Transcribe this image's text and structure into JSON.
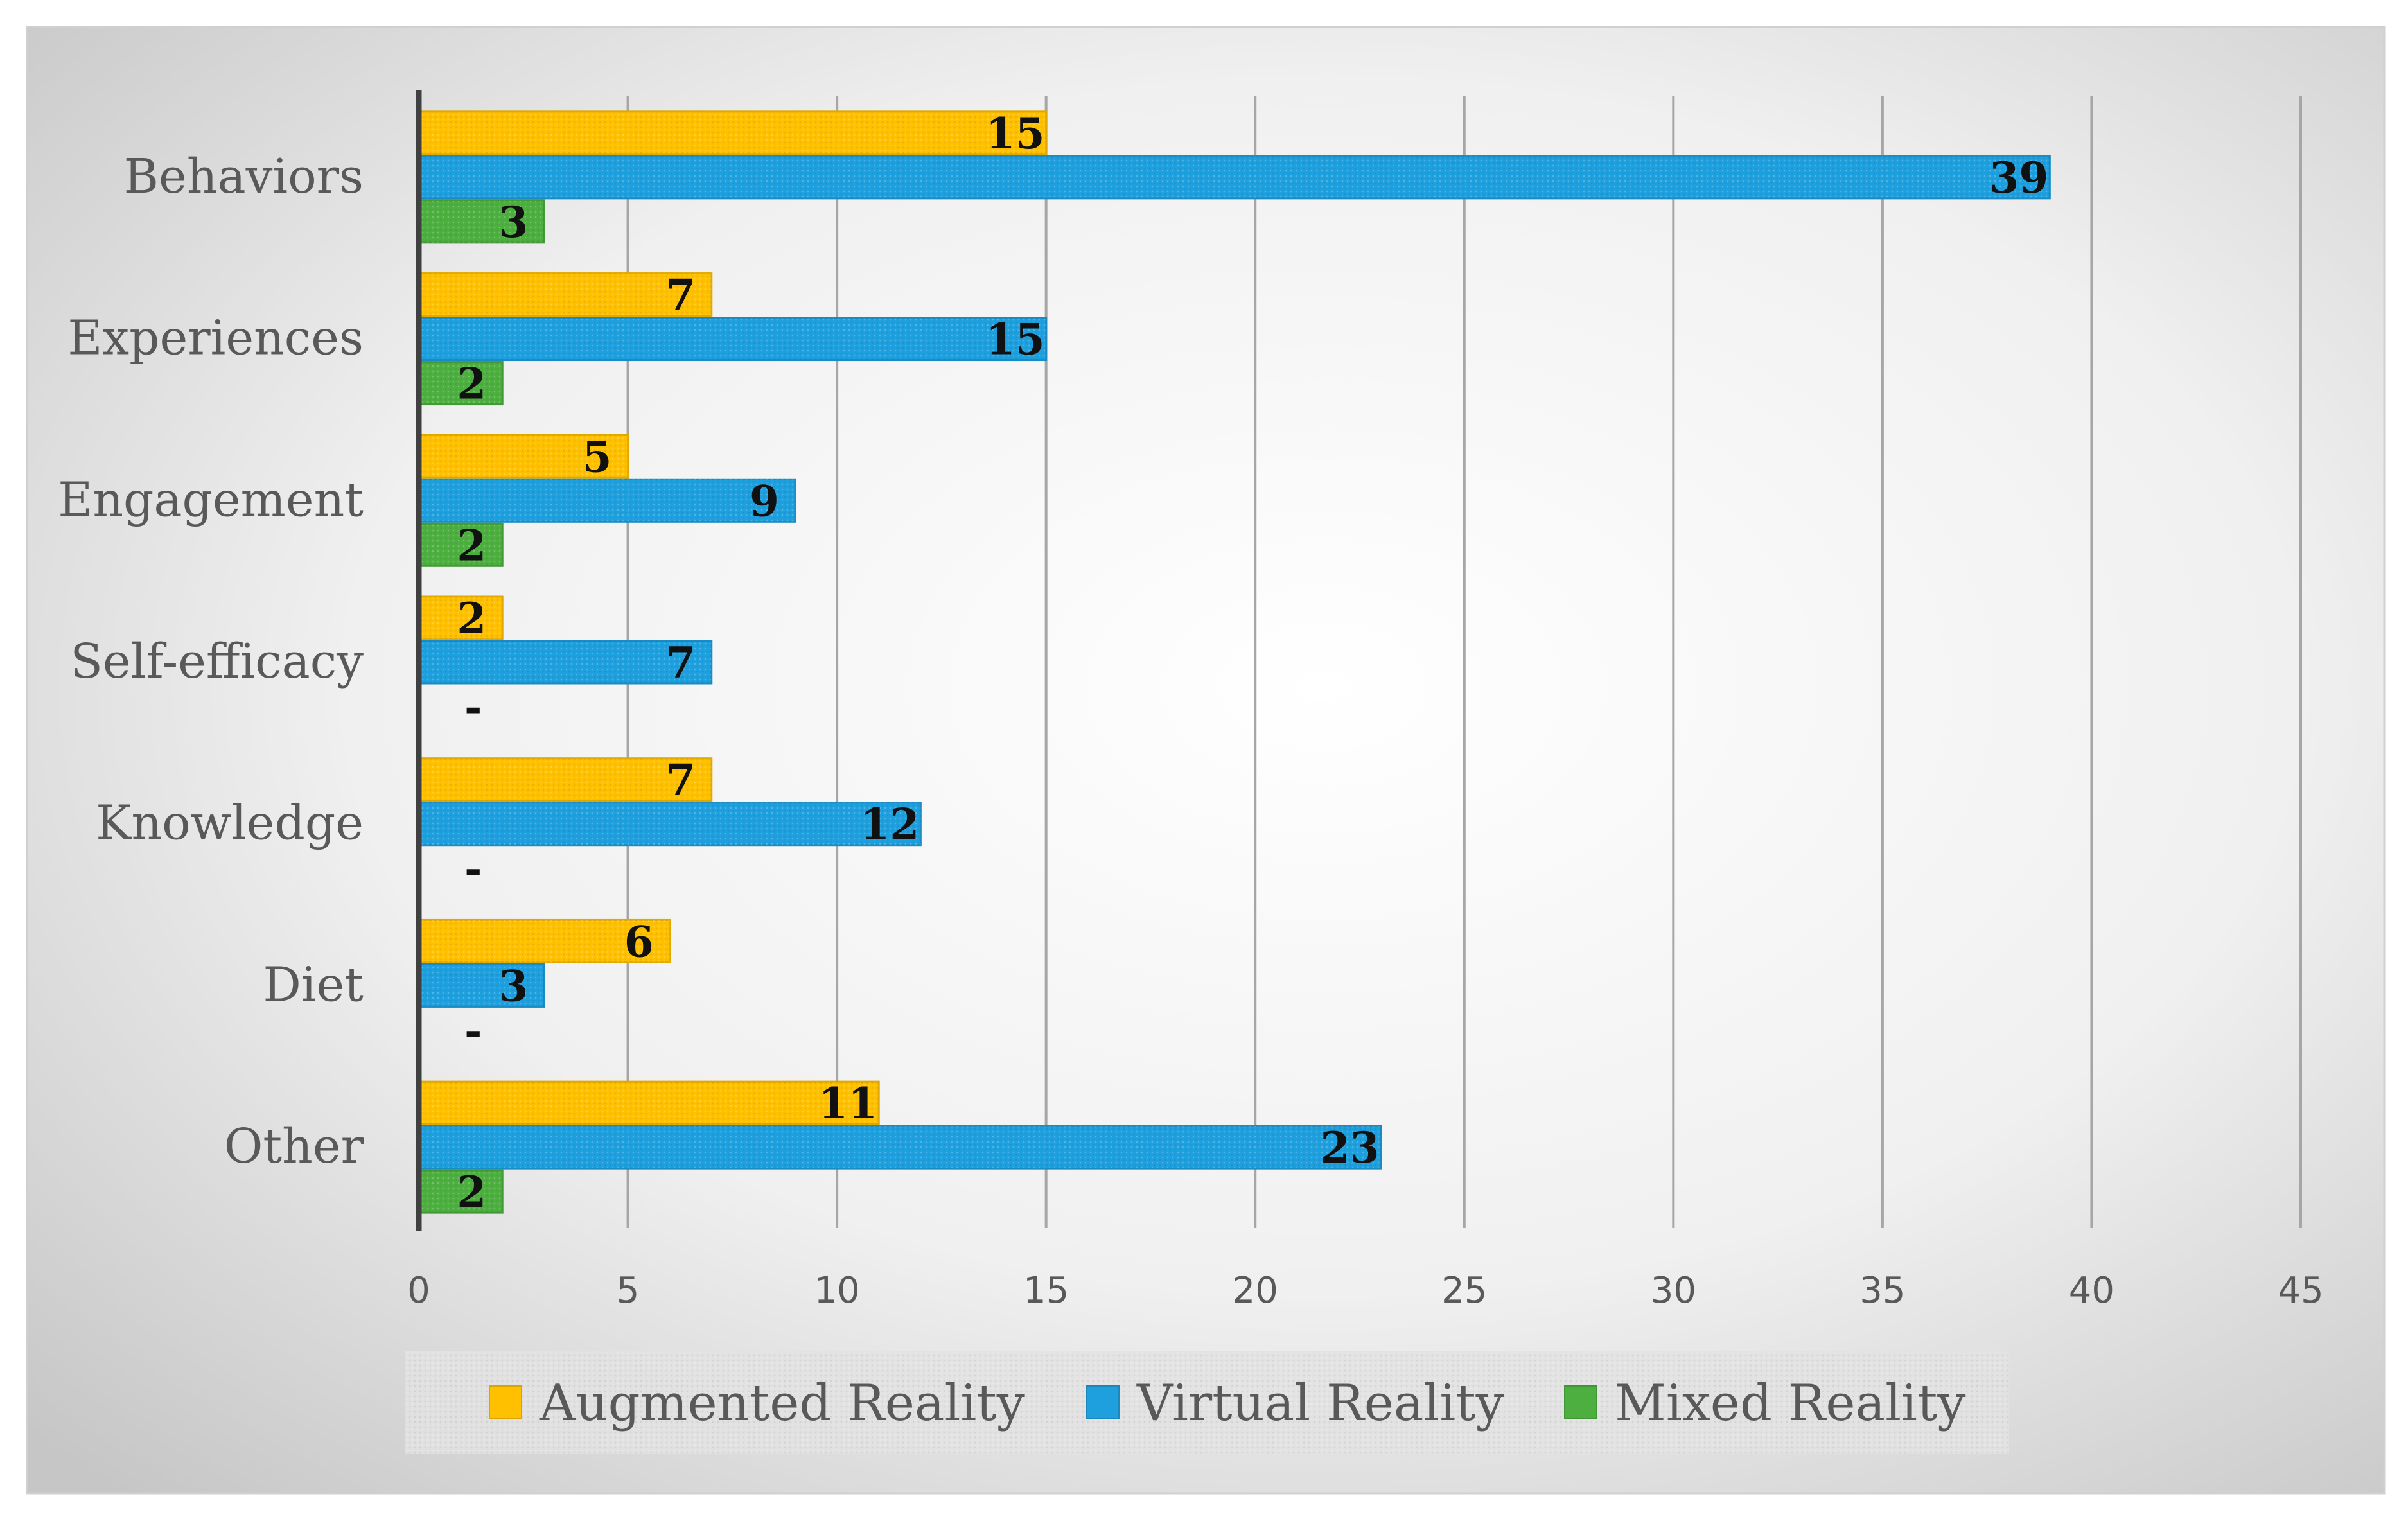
{
  "chart_data": {
    "type": "bar",
    "orientation": "horizontal",
    "title": "",
    "xlabel": "",
    "ylabel": "",
    "categories": [
      "Behaviors",
      "Experiences",
      "Engagement",
      "Self-efficacy",
      "Knowledge",
      "Diet",
      "Other"
    ],
    "series": [
      {
        "name": "Augmented Reality",
        "color": "#FFC000",
        "values": [
          15,
          7,
          5,
          2,
          7,
          6,
          11
        ],
        "labels": [
          "15",
          "7",
          "5",
          "2",
          "7",
          "6",
          "11"
        ]
      },
      {
        "name": "Virtual Reality",
        "color": "#1E9FDE",
        "values": [
          39,
          15,
          9,
          7,
          12,
          3,
          23
        ],
        "labels": [
          "39",
          "15",
          "9",
          "7",
          "12",
          "3",
          "23"
        ]
      },
      {
        "name": "Mixed Reality",
        "color": "#4CAF3F",
        "values": [
          3,
          2,
          2,
          null,
          null,
          null,
          2
        ],
        "labels": [
          "3",
          "2",
          "2",
          "-",
          "-",
          "-",
          "2"
        ]
      }
    ],
    "xlim": [
      0,
      45
    ],
    "xticks": [
      0,
      5,
      10,
      15,
      20,
      25,
      30,
      35,
      40,
      45
    ],
    "xtick_labels": [
      "0",
      "5",
      "10",
      "15",
      "20",
      "25",
      "30",
      "35",
      "40",
      "45"
    ],
    "grid": true,
    "legend_position": "bottom"
  },
  "colors": {
    "background_light": "#FFFFFF",
    "background_dark": "#C6C6C6",
    "gridline": "#A6A6A6",
    "axis": "#404040"
  }
}
